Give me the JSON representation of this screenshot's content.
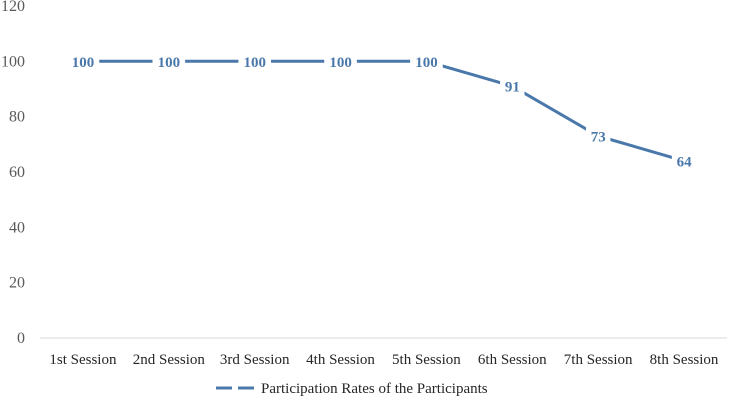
{
  "chart_data": {
    "type": "line",
    "title": "",
    "xlabel": "",
    "ylabel": "",
    "categories": [
      "1st Session",
      "2nd Session",
      "3rd Session",
      "4th Session",
      "5th Session",
      "6th Session",
      "7th Session",
      "8th Session"
    ],
    "series": [
      {
        "name": "Participation Rates of the Participants",
        "values": [
          100,
          100,
          100,
          100,
          100,
          91,
          73,
          64
        ],
        "color": "#4a78aa"
      }
    ],
    "ylim": [
      0,
      120
    ],
    "yticks": [
      "0",
      "20",
      "40",
      "60",
      "80",
      "100",
      "120"
    ],
    "grid": false,
    "legend_position": "bottom",
    "data_labels": true
  }
}
